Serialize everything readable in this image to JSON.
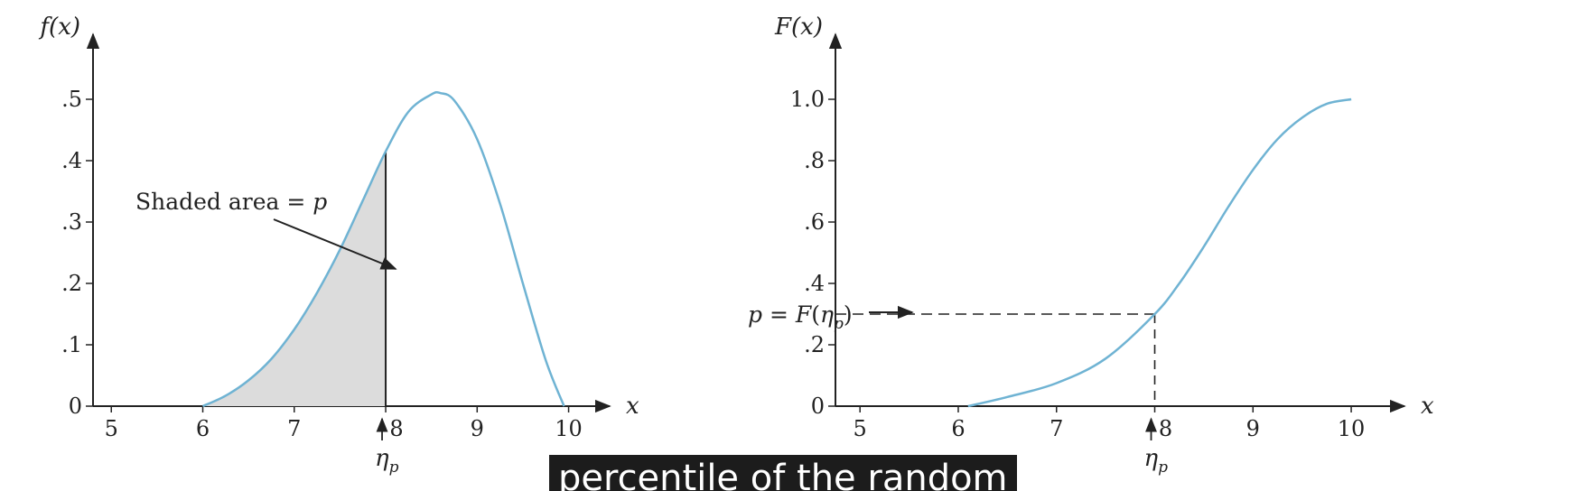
{
  "colors": {
    "curve": "#6fb3d3",
    "shade": "#dcdcdc",
    "axis": "#222222",
    "caption_bg": "#1c1c1c",
    "caption_fg": "#ffffff"
  },
  "chart_data": [
    {
      "type": "area",
      "ylabel": "f(x)",
      "xlabel": "x",
      "xlim": [
        4.8,
        10.35
      ],
      "ylim": [
        0,
        0.55
      ],
      "xticks": [
        {
          "v": 5,
          "label": "5"
        },
        {
          "v": 6,
          "label": "6"
        },
        {
          "v": 7,
          "label": "7"
        },
        {
          "v": 8,
          "label": "8"
        },
        {
          "v": 9,
          "label": "9"
        },
        {
          "v": 10,
          "label": "10"
        }
      ],
      "yticks": [
        {
          "v": 0,
          "label": "0"
        },
        {
          "v": 0.1,
          "label": ".1"
        },
        {
          "v": 0.2,
          "label": ".2"
        },
        {
          "v": 0.3,
          "label": ".3"
        },
        {
          "v": 0.4,
          "label": ".4"
        },
        {
          "v": 0.5,
          "label": ".5"
        }
      ],
      "x": [
        6.0,
        6.25,
        6.5,
        6.75,
        7.0,
        7.25,
        7.5,
        7.75,
        8.0,
        8.25,
        8.5,
        8.6,
        8.75,
        9.0,
        9.25,
        9.5,
        9.75,
        9.95
      ],
      "y": [
        0.0,
        0.017,
        0.042,
        0.077,
        0.125,
        0.185,
        0.255,
        0.335,
        0.415,
        0.48,
        0.508,
        0.51,
        0.498,
        0.435,
        0.33,
        0.2,
        0.075,
        0.0
      ],
      "shaded_upto": 8.0,
      "marker_label": "8",
      "percentile_label": "η",
      "percentile_sub": "p",
      "annotation": {
        "text": "Shaded area = ",
        "var": "p"
      }
    },
    {
      "type": "line",
      "ylabel": "F(x)",
      "xlabel": "x",
      "xlim": [
        4.75,
        10.45
      ],
      "ylim": [
        0,
        1.1
      ],
      "xticks": [
        {
          "v": 5,
          "label": "5"
        },
        {
          "v": 6,
          "label": "6"
        },
        {
          "v": 7,
          "label": "7"
        },
        {
          "v": 8,
          "label": "8"
        },
        {
          "v": 9,
          "label": "9"
        },
        {
          "v": 10,
          "label": "10"
        }
      ],
      "yticks": [
        {
          "v": 0,
          "label": "0"
        },
        {
          "v": 0.2,
          "label": ".2"
        },
        {
          "v": 0.4,
          "label": ".4"
        },
        {
          "v": 0.6,
          "label": ".6"
        },
        {
          "v": 0.8,
          "label": ".8"
        },
        {
          "v": 1.0,
          "label": "1.0"
        }
      ],
      "x": [
        6.1,
        6.5,
        7.0,
        7.5,
        8.0,
        8.25,
        8.5,
        8.75,
        9.0,
        9.25,
        9.5,
        9.75,
        10.0
      ],
      "y": [
        0.0,
        0.03,
        0.075,
        0.155,
        0.3,
        0.4,
        0.52,
        0.65,
        0.77,
        0.87,
        0.94,
        0.985,
        1.0
      ],
      "marker_x": 8.0,
      "marker_y": 0.3,
      "marker_label": "8",
      "percentile_label": "η",
      "percentile_sub": "p",
      "annotation": {
        "prefix": "p = F(",
        "var": "η",
        "sub": "p",
        "suffix": ")"
      }
    }
  ],
  "caption": {
    "text": "percentile of the random"
  }
}
